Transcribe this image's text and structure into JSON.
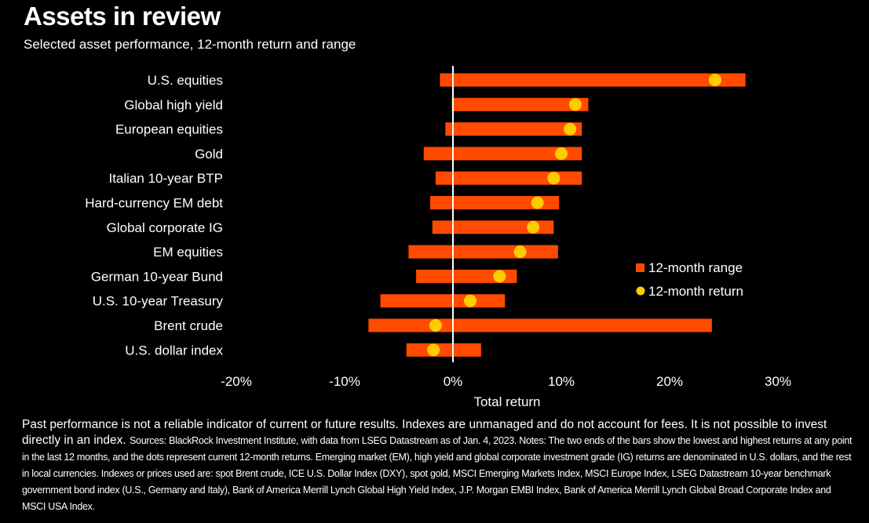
{
  "title": "Assets in review",
  "subtitle": "Selected asset performance, 12-month return and range",
  "colors": {
    "background": "#000000",
    "range_bar": "#ff4a00",
    "return_dot": "#ffcc00",
    "text": "#ffffff"
  },
  "chart_data": {
    "type": "bar",
    "orientation": "horizontal",
    "categories": [
      "U.S. equities",
      "Global high yield",
      "European equities",
      "Gold",
      "Italian 10-year BTP",
      "Hard-currency EM debt",
      "Global corporate IG",
      "EM equities",
      "German 10-year Bund",
      "U.S. 10-year Treasury",
      "Brent crude",
      "U.S. dollar index"
    ],
    "series": [
      {
        "name": "12-month range",
        "marker": "bar",
        "low": [
          -1.2,
          -0.1,
          -0.7,
          -2.7,
          -1.6,
          -2.1,
          -1.9,
          -4.1,
          -3.4,
          -6.7,
          -7.8,
          -4.3
        ],
        "high": [
          27.0,
          12.5,
          11.9,
          11.9,
          11.9,
          9.8,
          9.3,
          9.7,
          5.9,
          4.8,
          23.9,
          2.6
        ]
      },
      {
        "name": "12-month return",
        "marker": "dot",
        "values": [
          24.2,
          11.3,
          10.8,
          10.0,
          9.3,
          7.8,
          7.4,
          6.2,
          4.3,
          1.6,
          -1.6,
          -1.8
        ]
      }
    ],
    "xlim": [
      -20,
      30
    ],
    "xticks": [
      "-20%",
      "-10%",
      "0%",
      "10%",
      "20%",
      "30%"
    ],
    "xtick_values": [
      -20,
      -10,
      0,
      10,
      20,
      30
    ],
    "xlabel": "Total return",
    "legend": {
      "position": "right",
      "entries": [
        "12-month range",
        "12-month return"
      ]
    },
    "grid": false
  },
  "footnote": {
    "main": "Past performance is not a reliable indicator of current or future results. Indexes are unmanaged and do not account for fees. It is not possible to invest directly in an index.",
    "sources": "Sources: BlackRock Investment Institute, with data from LSEG Datastream as of Jan. 4, 2023. Notes: The two ends of the bars show the lowest and highest returns at any point in the last 12 months, and the dots represent current 12-month returns. Emerging market (EM), high yield and global corporate investment grade (IG) returns are denominated in U.S. dollars, and the rest in local currencies. Indexes or prices used are: spot Brent crude, ICE U.S. Dollar Index (DXY), spot gold, MSCI Emerging Markets Index, MSCI Europe Index, LSEG Datastream 10-year benchmark government bond index (U.S., Germany and Italy), Bank of America Merrill Lynch Global High Yield Index, J.P. Morgan EMBI Index, Bank of America Merrill Lynch Global Broad Corporate Index and MSCI USA Index."
  }
}
